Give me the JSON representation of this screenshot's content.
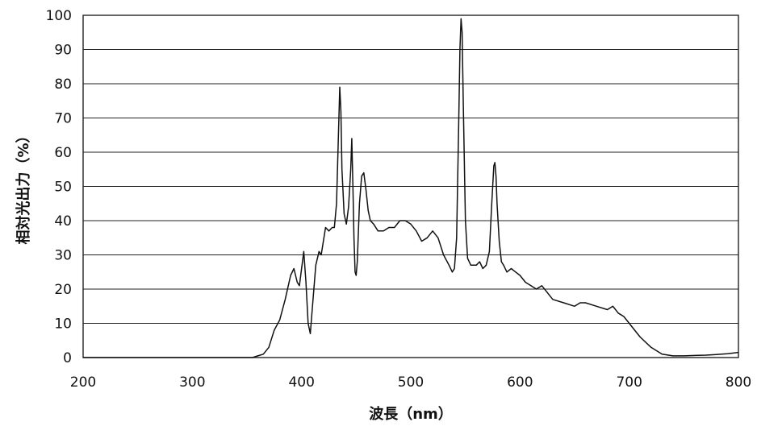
{
  "chart_data": {
    "type": "line",
    "title": "",
    "xlabel": "波長（nm）",
    "ylabel": "相対光出力（%）",
    "xlim": [
      200,
      800
    ],
    "ylim": [
      0,
      100
    ],
    "xticks": [
      200,
      300,
      400,
      500,
      600,
      700,
      800
    ],
    "yticks": [
      0,
      10,
      20,
      30,
      40,
      50,
      60,
      70,
      80,
      90,
      100
    ],
    "xtick_labels": [
      "200",
      "300",
      "400",
      "500",
      "600",
      "700",
      "800"
    ],
    "ytick_labels": [
      "0",
      "10",
      "20",
      "30",
      "40",
      "50",
      "60",
      "70",
      "80",
      "90",
      "100"
    ],
    "grid": {
      "horizontal": true,
      "vertical": false
    },
    "legend": "none",
    "line_color": "#111111",
    "series": [
      {
        "x": [
          200,
          300,
          355,
          360,
          365,
          370,
          375,
          380,
          385,
          390,
          393,
          396,
          398,
          400,
          402,
          404,
          406,
          408,
          410,
          413,
          416,
          418,
          420,
          422,
          425,
          428,
          430,
          432,
          434,
          435,
          436,
          437,
          439,
          441,
          443,
          445,
          446,
          447,
          448,
          449,
          450,
          451,
          453,
          455,
          457,
          459,
          461,
          463,
          466,
          470,
          475,
          480,
          485,
          490,
          495,
          500,
          505,
          510,
          515,
          520,
          525,
          530,
          535,
          538,
          540,
          542,
          544,
          545,
          546,
          547,
          548,
          550,
          552,
          555,
          560,
          563,
          566,
          569,
          572,
          574,
          576,
          577,
          578,
          579,
          581,
          583,
          585,
          588,
          592,
          596,
          600,
          605,
          610,
          615,
          620,
          625,
          630,
          640,
          650,
          655,
          660,
          670,
          680,
          685,
          690,
          695,
          700,
          705,
          710,
          720,
          730,
          740,
          750,
          760,
          770,
          780,
          790,
          800
        ],
        "y": [
          0,
          0,
          0,
          0.5,
          1,
          3,
          8,
          11,
          17,
          24,
          26,
          22,
          21,
          26,
          31,
          22,
          10,
          7,
          15,
          27,
          31,
          30,
          34,
          38,
          37,
          38,
          38,
          45,
          68,
          79,
          72,
          55,
          42,
          39,
          44,
          55,
          64,
          50,
          35,
          25,
          24,
          28,
          45,
          53,
          54,
          49,
          43,
          40,
          39,
          37,
          37,
          38,
          38,
          40,
          40,
          39,
          37,
          34,
          35,
          37,
          35,
          30,
          27,
          25,
          26,
          35,
          70,
          90,
          99,
          95,
          75,
          40,
          29,
          27,
          27,
          28,
          26,
          27,
          31,
          44,
          56,
          57,
          53,
          45,
          34,
          28,
          27,
          25,
          26,
          25,
          24,
          22,
          21,
          20,
          21,
          19,
          17,
          16,
          15,
          16,
          16,
          15,
          14,
          15,
          13,
          12,
          10,
          8,
          6,
          3,
          1,
          0.5,
          0.5,
          0.6,
          0.7,
          0.9,
          1.1,
          1.5
        ]
      }
    ]
  }
}
